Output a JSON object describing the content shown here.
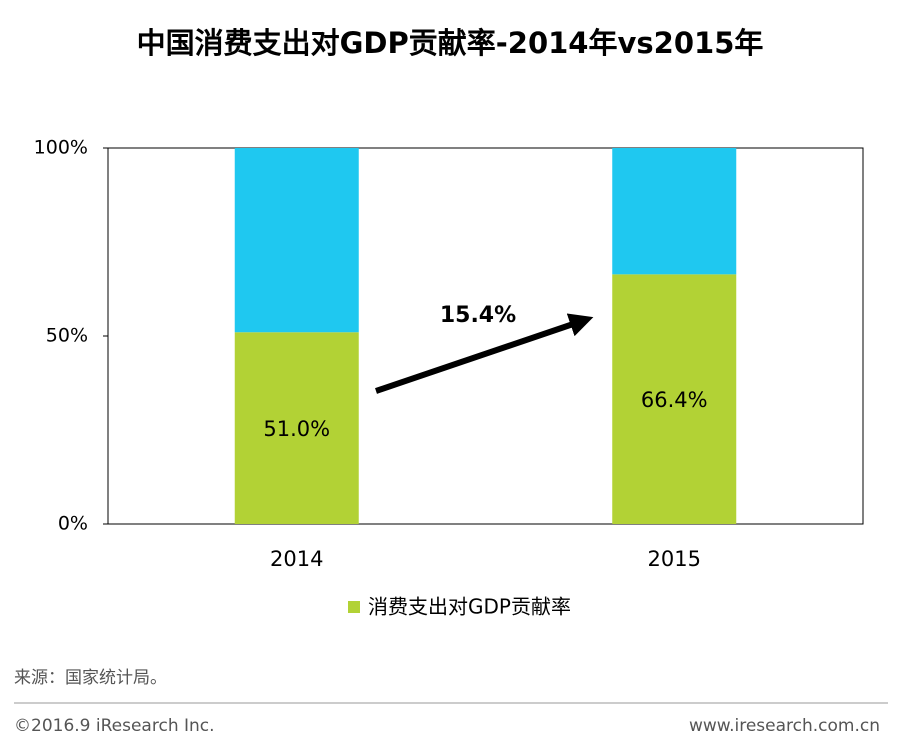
{
  "chart_data": {
    "type": "stacked_bar",
    "title": "中国消费支出对GDP贡献率-2014年vs2015年",
    "categories": [
      "2014",
      "2015"
    ],
    "series": [
      {
        "name": "消费支出对GDP贡献率",
        "color": "#b2d235",
        "values": [
          51.0,
          66.4
        ],
        "value_labels": [
          "51.0%",
          "66.4%"
        ]
      },
      {
        "color": "#1fc8f0",
        "values": [
          49.0,
          33.6
        ]
      }
    ],
    "ylim": [
      0,
      100
    ],
    "yticks": [
      {
        "value": 0,
        "label": "0%"
      },
      {
        "value": 50,
        "label": "50%"
      },
      {
        "value": 100,
        "label": "100%"
      }
    ],
    "annotation": "15.4%",
    "source": "来源：国家统计局。",
    "footer_left": "©2016.9 iResearch Inc.",
    "footer_right": "www.iresearch.com.cn"
  }
}
